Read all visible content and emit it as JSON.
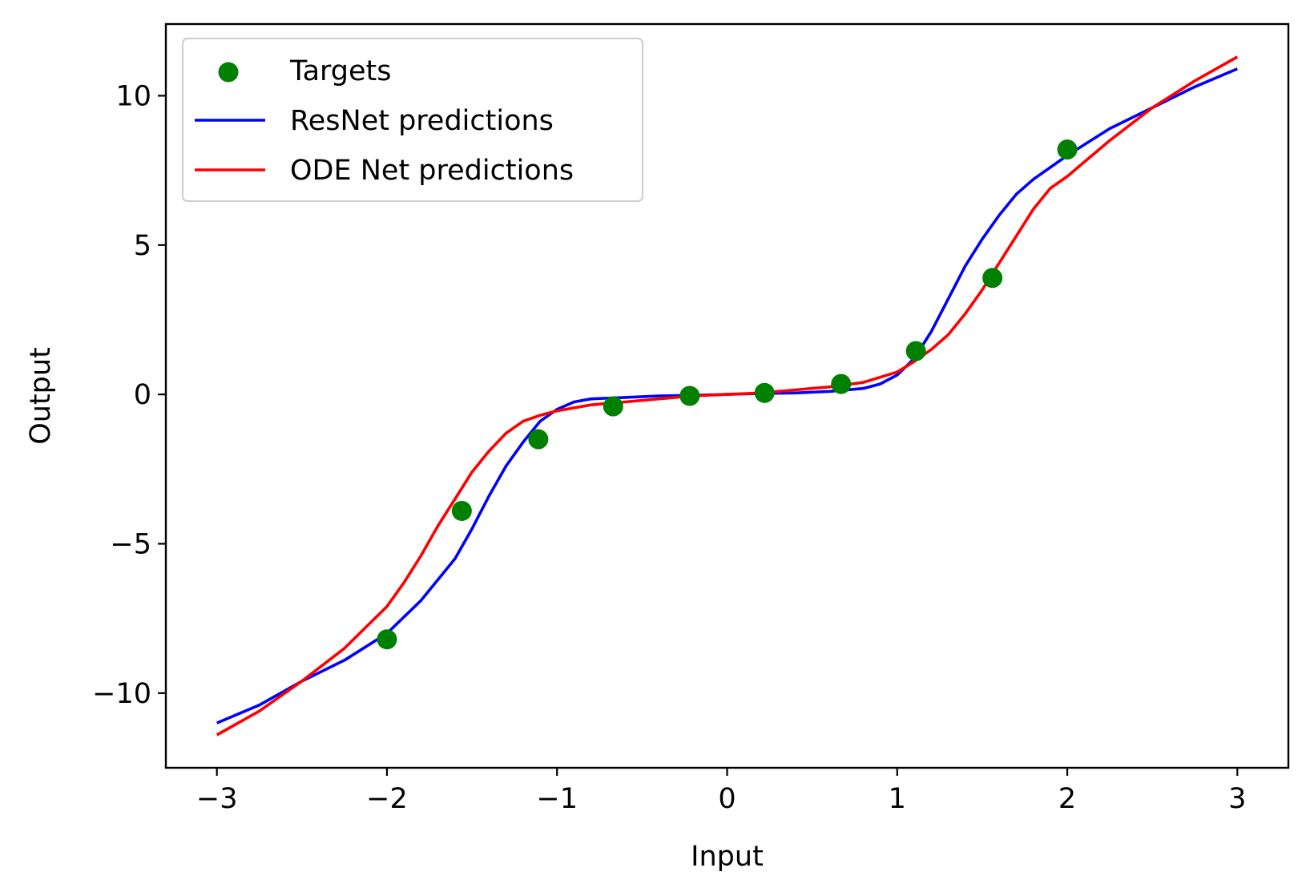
{
  "chart_data": {
    "type": "line",
    "title": "",
    "xlabel": "Input",
    "ylabel": "Output",
    "xlim": [
      -3.3,
      3.3
    ],
    "ylim": [
      -12.5,
      12.4
    ],
    "grid": false,
    "legend_placement": "top-left",
    "xticks": [
      -3,
      -2,
      -1,
      0,
      1,
      2,
      3
    ],
    "xtick_labels": [
      "−3",
      "−2",
      "−1",
      "0",
      "1",
      "2",
      "3"
    ],
    "yticks": [
      -10,
      -5,
      0,
      5,
      10
    ],
    "ytick_labels": [
      "−10",
      "−5",
      "0",
      "5",
      "10"
    ],
    "series": [
      {
        "name": "Targets",
        "kind": "scatter",
        "color": "#008000",
        "x": [
          -2.0,
          -1.56,
          -1.11,
          -0.67,
          -0.22,
          0.22,
          0.67,
          1.11,
          1.56,
          2.0
        ],
        "y": [
          -8.2,
          -3.9,
          -1.5,
          -0.4,
          -0.05,
          0.05,
          0.35,
          1.45,
          3.9,
          8.2
        ]
      },
      {
        "name": "ResNet predictions",
        "kind": "line",
        "color": "#0000ff",
        "x": [
          -3.0,
          -2.75,
          -2.5,
          -2.25,
          -2.0,
          -1.8,
          -1.6,
          -1.5,
          -1.4,
          -1.3,
          -1.2,
          -1.1,
          -1.0,
          -0.9,
          -0.8,
          -0.6,
          -0.4,
          -0.2,
          0.0,
          0.2,
          0.4,
          0.6,
          0.8,
          0.9,
          1.0,
          1.1,
          1.2,
          1.3,
          1.4,
          1.5,
          1.6,
          1.7,
          1.8,
          2.0,
          2.25,
          2.5,
          2.75,
          3.0
        ],
        "y": [
          -11.0,
          -10.4,
          -9.6,
          -8.9,
          -8.0,
          -6.9,
          -5.5,
          -4.5,
          -3.4,
          -2.4,
          -1.6,
          -0.9,
          -0.5,
          -0.25,
          -0.15,
          -0.1,
          -0.05,
          -0.03,
          0.0,
          0.03,
          0.05,
          0.1,
          0.2,
          0.35,
          0.65,
          1.2,
          2.1,
          3.2,
          4.3,
          5.2,
          6.0,
          6.7,
          7.2,
          8.0,
          8.9,
          9.6,
          10.3,
          10.9
        ]
      },
      {
        "name": "ODE Net predictions",
        "kind": "line",
        "color": "#ff0000",
        "x": [
          -3.0,
          -2.75,
          -2.5,
          -2.25,
          -2.0,
          -1.9,
          -1.8,
          -1.7,
          -1.6,
          -1.5,
          -1.4,
          -1.3,
          -1.2,
          -1.1,
          -1.0,
          -0.8,
          -0.6,
          -0.4,
          -0.2,
          0.0,
          0.2,
          0.4,
          0.6,
          0.8,
          1.0,
          1.1,
          1.2,
          1.3,
          1.4,
          1.5,
          1.6,
          1.7,
          1.8,
          1.9,
          2.0,
          2.25,
          2.5,
          2.75,
          3.0
        ],
        "y": [
          -11.4,
          -10.6,
          -9.6,
          -8.5,
          -7.1,
          -6.3,
          -5.4,
          -4.4,
          -3.5,
          -2.6,
          -1.9,
          -1.3,
          -0.9,
          -0.7,
          -0.55,
          -0.35,
          -0.25,
          -0.15,
          -0.05,
          0.0,
          0.05,
          0.15,
          0.25,
          0.4,
          0.75,
          1.1,
          1.5,
          2.0,
          2.7,
          3.5,
          4.4,
          5.3,
          6.2,
          6.9,
          7.3,
          8.5,
          9.6,
          10.5,
          11.3
        ]
      }
    ]
  }
}
